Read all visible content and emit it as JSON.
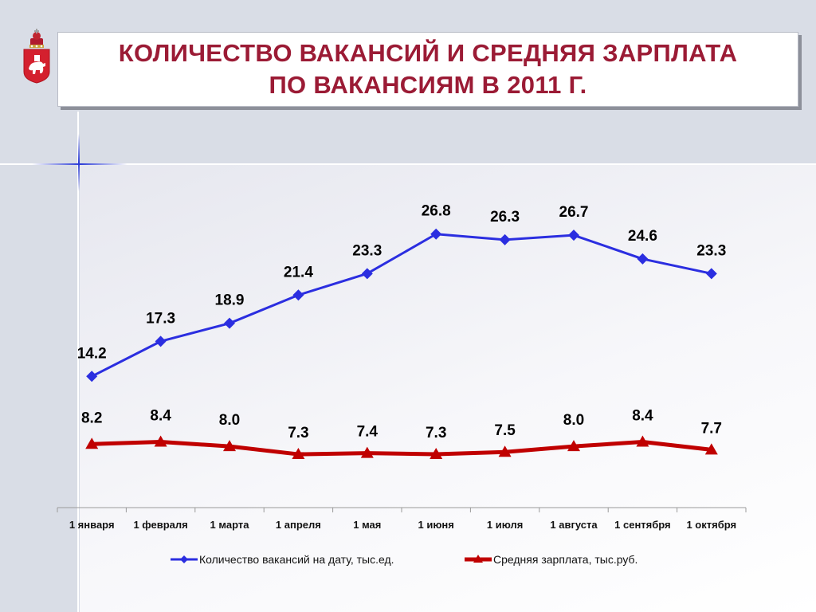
{
  "slide": {
    "title_line1": "КОЛИЧЕСТВО ВАКАНСИЙ И СРЕДНЯЯ ЗАРПЛАТА",
    "title_line2": "ПО ВАКАНСИЯМ В 2011 Г.",
    "emblem_icon": "perm-krai-coat-of-arms-icon"
  },
  "colors": {
    "title": "#9b1b35",
    "series_vacancies": "#2b2ee0",
    "series_salary": "#c00000"
  },
  "chart_data": {
    "type": "line",
    "title": "",
    "categories": [
      "1 января",
      "1 февраля",
      "1 марта",
      "1 апреля",
      "1 мая",
      "1 июня",
      "1 июля",
      "1 августа",
      "1 сентября",
      "1 октября"
    ],
    "series": [
      {
        "name": "Количество вакансий на дату, тыс.ед.",
        "marker": "diamond",
        "color": "#2b2ee0",
        "values": [
          14.2,
          17.3,
          18.9,
          21.4,
          23.3,
          26.8,
          26.3,
          26.7,
          24.6,
          23.3
        ],
        "labels": [
          "14.2",
          "17.3",
          "18.9",
          "21.4",
          "23.3",
          "26.8",
          "26.3",
          "26.7",
          "24.6",
          "23.3"
        ]
      },
      {
        "name": "Средняя зарплата, тыс.руб.",
        "marker": "triangle",
        "color": "#c00000",
        "values": [
          8.2,
          8.4,
          8.0,
          7.3,
          7.4,
          7.3,
          7.5,
          8.0,
          8.4,
          7.7
        ],
        "labels": [
          "8.2",
          "8.4",
          "8.0",
          "7.3",
          "7.4",
          "7.3",
          "7.5",
          "8.0",
          "8.4",
          "7.7"
        ]
      }
    ],
    "xlabel": "",
    "ylabel": "",
    "y_axis_visible": false,
    "grid": false,
    "legend_position": "bottom"
  }
}
